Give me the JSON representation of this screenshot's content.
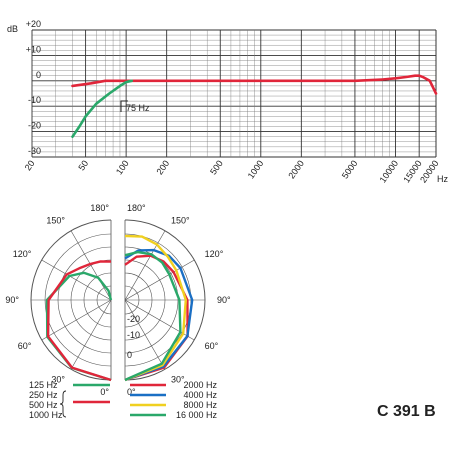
{
  "chart_data": [
    {
      "type": "line",
      "xscale": "log",
      "xlim": [
        20,
        20000
      ],
      "ylim": [
        -30,
        20
      ],
      "y_unit": "dB",
      "x_unit": "Hz",
      "yticks": [
        "+20",
        "+10",
        "0",
        "-10",
        "-20",
        "-30"
      ],
      "xticks": [
        "20",
        "50",
        "100",
        "200",
        "500",
        "1000",
        "2000",
        "5000",
        "10000",
        "15000",
        "20000"
      ],
      "annotation": "75 Hz",
      "series": [
        {
          "color": "#e0263a",
          "x": [
            40,
            55,
            70,
            100,
            200,
            500,
            1000,
            2000,
            5000,
            8000,
            10000,
            12000,
            14000,
            15000,
            16000,
            18000,
            20000
          ],
          "y": [
            -2,
            -1,
            0,
            0,
            0,
            0,
            0,
            0,
            0,
            0.5,
            1,
            1.5,
            2,
            2,
            1.5,
            0,
            -5
          ]
        },
        {
          "color": "#2aa86a",
          "x": [
            40,
            45,
            50,
            60,
            75,
            90,
            100,
            110
          ],
          "y": [
            -22,
            -18,
            -14,
            -9,
            -5,
            -2,
            -0.5,
            0
          ]
        }
      ]
    },
    {
      "type": "polar",
      "angle_labels": [
        "180°",
        "150°",
        "120°",
        "90°",
        "60°",
        "30°",
        "0°",
        "180°",
        "150°",
        "120°",
        "90°",
        "60°",
        "30°",
        "0°"
      ],
      "radial_labels": [
        "-20",
        "-10",
        "0"
      ],
      "legend_left": [
        {
          "labels": [
            "125 Hz"
          ],
          "color": "#2aa86a"
        },
        {
          "labels": [
            "250 Hz",
            "500 Hz",
            "1000 Hz"
          ],
          "color": "#e0263a"
        }
      ],
      "legend_right": [
        {
          "label": "2000 Hz",
          "color": "#e0263a"
        },
        {
          "label": "4000 Hz",
          "color": "#1a6fc4"
        },
        {
          "label": "8000 Hz",
          "color": "#f0d020"
        },
        {
          "label": "16 000 Hz",
          "color": "#2aa86a"
        }
      ]
    }
  ],
  "model": "C 391 B"
}
